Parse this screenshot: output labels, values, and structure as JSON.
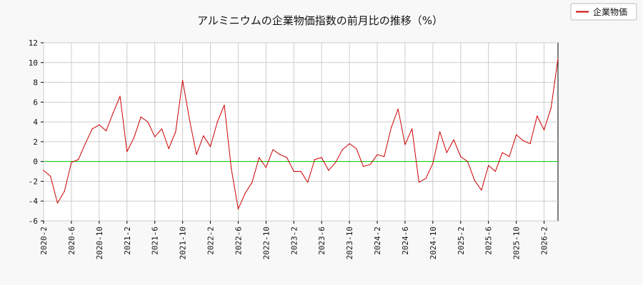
{
  "chart_data": {
    "type": "line",
    "title": "アルミニウムの企業物価指数の前月比の推移（%）",
    "xlabel": "",
    "ylabel": "",
    "ylim": [
      -6,
      12
    ],
    "yticks": [
      -6,
      -4,
      -2,
      0,
      2,
      4,
      6,
      8,
      10,
      12
    ],
    "grid": true,
    "legend_position": "top-right",
    "x_tick_labels": [
      "2020-2",
      "2020-6",
      "2020-10",
      "2021-2",
      "2021-6",
      "2021-10",
      "2022-2",
      "2022-6",
      "2022-10",
      "2023-2",
      "2023-6",
      "2023-10",
      "2024-2",
      "2024-6",
      "2024-10",
      "2025-2",
      "2025-6",
      "2025-10",
      "2026-2"
    ],
    "x": [
      "2020-2",
      "2020-3",
      "2020-4",
      "2020-5",
      "2020-6",
      "2020-7",
      "2020-8",
      "2020-9",
      "2020-10",
      "2020-11",
      "2020-12",
      "2021-1",
      "2021-2",
      "2021-3",
      "2021-4",
      "2021-5",
      "2021-6",
      "2021-7",
      "2021-8",
      "2021-9",
      "2021-10",
      "2021-11",
      "2021-12",
      "2022-1",
      "2022-2",
      "2022-3",
      "2022-4",
      "2022-5",
      "2022-6",
      "2022-7",
      "2022-8",
      "2022-9",
      "2022-10",
      "2022-11",
      "2022-12",
      "2023-1",
      "2023-2",
      "2023-3",
      "2023-4",
      "2023-5",
      "2023-6",
      "2023-7",
      "2023-8",
      "2023-9",
      "2023-10",
      "2023-11",
      "2023-12",
      "2024-1",
      "2024-2",
      "2024-3",
      "2024-4",
      "2024-5",
      "2024-6",
      "2024-7",
      "2024-8",
      "2024-9",
      "2024-10",
      "2024-11",
      "2024-12",
      "2025-1",
      "2025-2",
      "2025-3",
      "2025-4",
      "2025-5",
      "2025-6",
      "2025-7",
      "2025-8",
      "2025-9",
      "2025-10",
      "2025-11",
      "2025-12",
      "2026-1",
      "2026-2",
      "2026-3",
      "2026-4"
    ],
    "series": [
      {
        "name": "企業物価",
        "color": "#cc0000",
        "values": [
          -0.9,
          -1.5,
          -4.2,
          -3.0,
          -0.1,
          0.2,
          1.8,
          3.3,
          3.7,
          3.1,
          4.9,
          6.6,
          1.0,
          2.4,
          4.5,
          4.0,
          2.5,
          3.3,
          1.3,
          3.0,
          8.2,
          4.2,
          0.7,
          2.6,
          1.5,
          4.0,
          5.7,
          -0.7,
          -4.8,
          -3.2,
          -2.1,
          0.4,
          -0.6,
          1.2,
          0.7,
          0.4,
          -1.0,
          -1.0,
          -2.1,
          0.2,
          0.4,
          -0.9,
          -0.1,
          1.2,
          1.8,
          1.3,
          -0.5,
          -0.3,
          0.7,
          0.5,
          3.4,
          5.3,
          1.7,
          3.3,
          -2.1,
          -1.7,
          -0.2,
          3.0,
          0.9,
          2.2,
          0.5,
          0.0,
          -1.9,
          -2.9,
          -0.4,
          -1.0,
          0.9,
          0.5,
          2.7,
          2.1,
          1.8,
          4.6,
          3.2,
          5.4,
          10.4
        ]
      }
    ],
    "reference_line": {
      "value": 0,
      "color": "#00cc00"
    }
  }
}
